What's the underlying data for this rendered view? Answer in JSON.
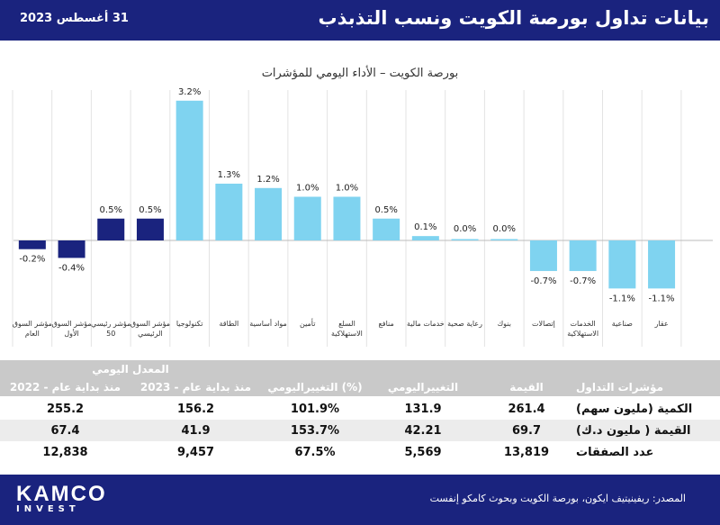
{
  "header": {
    "title": "بيانات تداول بورصة الكويت ونسب التذبذب",
    "date": "31 أغسطس 2023"
  },
  "colors": {
    "header_bg": "#1a237e",
    "bar_dark": "#1a237e",
    "bar_light": "#7fd3f0"
  },
  "chart_data": {
    "type": "bar",
    "title": "بورصة الكويت – الأداء اليومي للمؤشرات",
    "categories": [
      "مؤشر السوق العام",
      "مؤشر السوق الأول",
      "مؤشر رئيسي 50",
      "مؤشر السوق الرئيسي",
      "تكنولوجيا",
      "الطاقة",
      "مواد أساسية",
      "تأمين",
      "السلع الاستهلاكية",
      "منافع",
      "خدمات مالية",
      "رعاية صحية",
      "بنوك",
      "إتصالات",
      "الخدمات الاستهلاكية",
      "صناعية",
      "عقار"
    ],
    "values": [
      -0.2,
      -0.4,
      0.5,
      0.5,
      3.2,
      1.3,
      1.2,
      1.0,
      1.0,
      0.5,
      0.1,
      0.0,
      0.0,
      -0.7,
      -0.7,
      -1.1,
      -1.1
    ],
    "data_labels": [
      "-0.2%",
      "-0.4%",
      "0.5%",
      "0.5%",
      "3.2%",
      "1.3%",
      "1.2%",
      "1.0%",
      "1.0%",
      "0.5%",
      "0.1%",
      "0.0%",
      "0.0%",
      "-0.7%",
      "-0.7%",
      "-1.1%",
      "-1.1%"
    ],
    "series_type": [
      "index",
      "index",
      "index",
      "index",
      "sector",
      "sector",
      "sector",
      "sector",
      "sector",
      "sector",
      "sector",
      "sector",
      "sector",
      "sector",
      "sector",
      "sector",
      "sector"
    ],
    "ylim": [
      -1.6,
      3.4
    ],
    "grid": false,
    "legend": "none"
  },
  "table": {
    "group_header": "المعدل اليومي",
    "columns": [
      "مؤشرات التداول",
      "القيمة",
      "التغييراليومي",
      "التغييراليومي (%)",
      "منذ بداية عام - 2023",
      "منذ بداية عام - 2022"
    ],
    "rows": [
      {
        "label": "الكمية (مليون سهم)",
        "value": "261.4",
        "change": "131.9",
        "change_pct": "101.9%",
        "ytd2023": "156.2",
        "ytd2022": "255.2"
      },
      {
        "label": "القيمة ( مليون د.ك)",
        "value": "69.7",
        "change": "42.21",
        "change_pct": "153.7%",
        "ytd2023": "41.9",
        "ytd2022": "67.4"
      },
      {
        "label": "عدد الصفقات",
        "value": "13,819",
        "change": "5,569",
        "change_pct": "67.5%",
        "ytd2023": "9,457",
        "ytd2022": "12,838"
      }
    ]
  },
  "footer": {
    "logo_main": "KAMCO",
    "logo_sub": "INVEST",
    "source": "المصدر: ريفينيتيف ايكون، بورصة الكويت وبحوث كامكو إنفست"
  }
}
